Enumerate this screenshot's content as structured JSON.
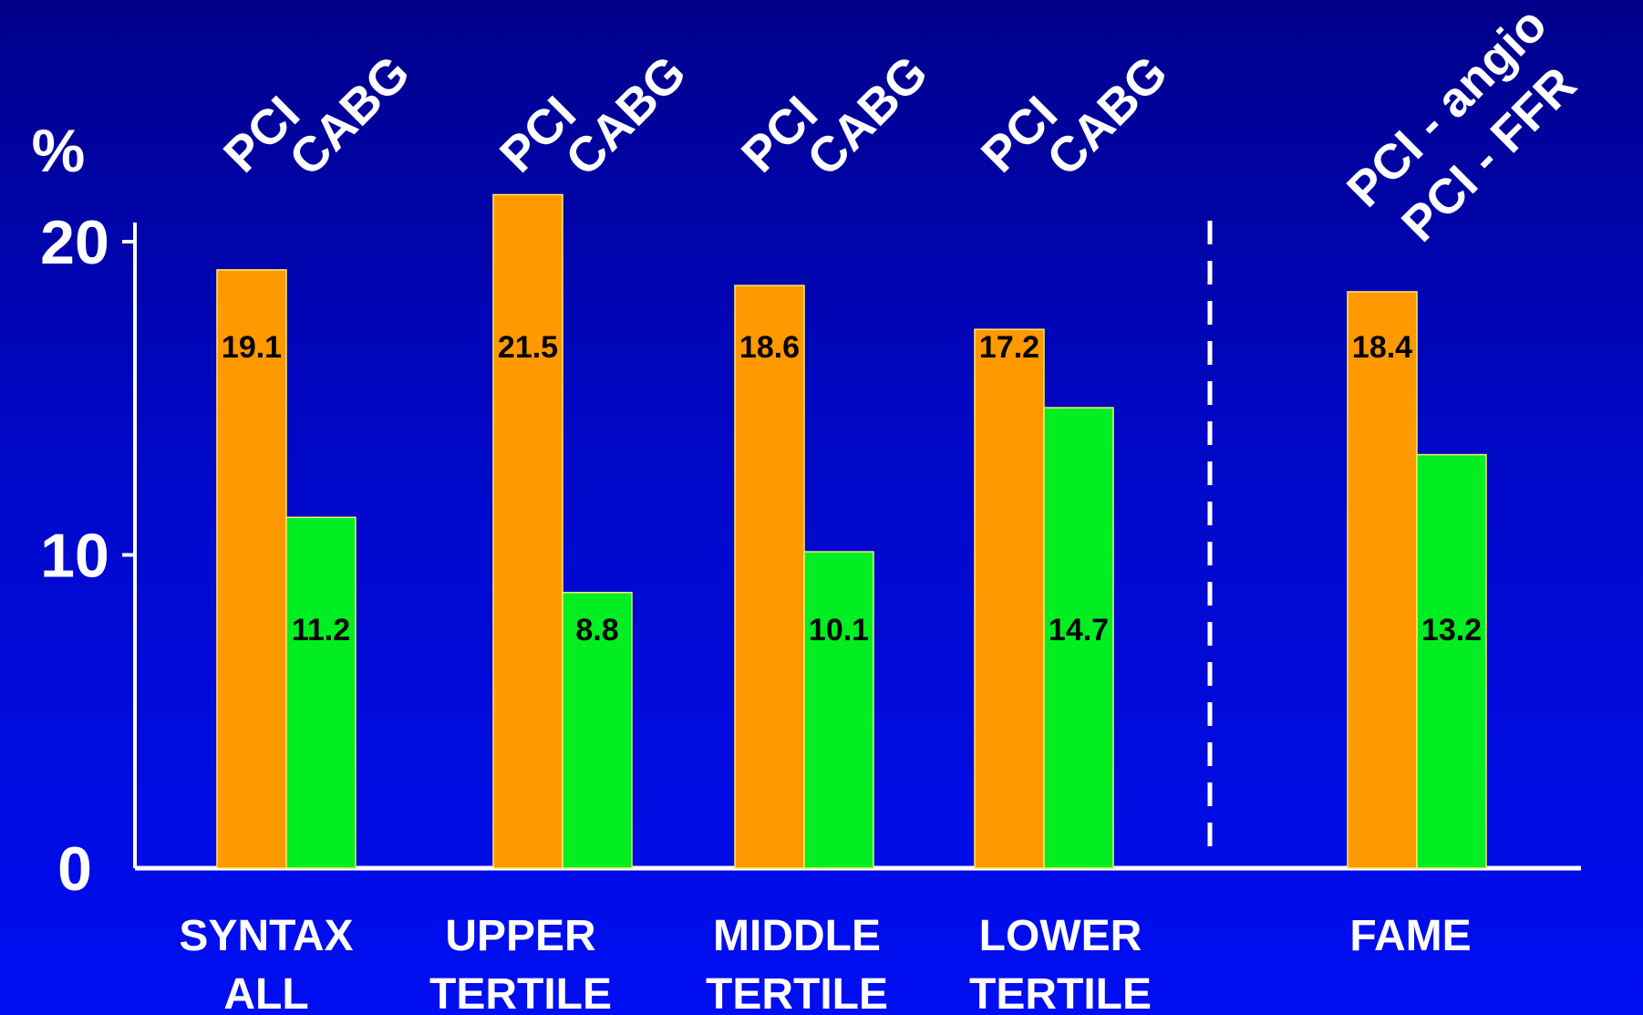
{
  "chart_data": {
    "type": "bar",
    "ylabel": "%",
    "ylim": [
      0,
      20
    ],
    "yticks": [
      "0",
      "10",
      "20"
    ],
    "colors": {
      "PCI": "#ff9900",
      "CABG": "#00ee22",
      "axis": "#ffffff",
      "label_text": "#000000"
    },
    "groups": [
      {
        "category": [
          "SYNTAX",
          "ALL"
        ],
        "bars": [
          {
            "top_label": "PCI",
            "value": 19.1,
            "value_label": "19.1",
            "color_key": "PCI"
          },
          {
            "top_label": "CABG",
            "value": 11.2,
            "value_label": "11.2",
            "color_key": "CABG"
          }
        ]
      },
      {
        "category": [
          "UPPER",
          "TERTILE"
        ],
        "bars": [
          {
            "top_label": "PCI",
            "value": 21.5,
            "value_label": "21.5",
            "color_key": "PCI"
          },
          {
            "top_label": "CABG",
            "value": 8.8,
            "value_label": "8.8",
            "color_key": "CABG"
          }
        ]
      },
      {
        "category": [
          "MIDDLE",
          "TERTILE"
        ],
        "bars": [
          {
            "top_label": "PCI",
            "value": 18.6,
            "value_label": "18.6",
            "color_key": "PCI"
          },
          {
            "top_label": "CABG",
            "value": 10.1,
            "value_label": "10.1",
            "color_key": "CABG"
          }
        ]
      },
      {
        "category": [
          "LOWER",
          "TERTILE"
        ],
        "bars": [
          {
            "top_label": "PCI",
            "value": 17.2,
            "value_label": "17.2",
            "color_key": "PCI"
          },
          {
            "top_label": "CABG",
            "value": 14.7,
            "value_label": "14.7",
            "color_key": "CABG"
          }
        ]
      },
      {
        "category": [
          "FAME"
        ],
        "bars": [
          {
            "top_label": "PCI - angio",
            "value": 18.4,
            "value_label": "18.4",
            "color_key": "PCI"
          },
          {
            "top_label": "PCI -  FFR",
            "value": 13.2,
            "value_label": "13.2",
            "color_key": "CABG"
          }
        ]
      }
    ],
    "divider": "dashed vertical line between LOWER TERTILE and FAME",
    "grid": false,
    "legend": "none"
  }
}
